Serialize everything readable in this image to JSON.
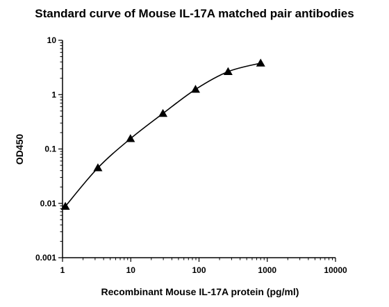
{
  "chart_data": {
    "type": "scatter",
    "title": "Standard curve of Mouse IL-17A matched pair antibodies",
    "xlabel": "Recombinant Mouse IL-17A protein (pg/ml)",
    "ylabel": "OD450",
    "xscale": "log",
    "yscale": "log",
    "xlim": [
      1,
      10000
    ],
    "ylim": [
      0.001,
      10
    ],
    "xticks": [
      "1",
      "10",
      "100",
      "1000",
      "10000"
    ],
    "yticks": [
      "0.001",
      "0.01",
      "0.1",
      "1",
      "10"
    ],
    "marker": "triangle",
    "fit_line": true,
    "grid": false,
    "series": [
      {
        "x": [
          1.1,
          3.3,
          9.9,
          29.6,
          88.9,
          266.7,
          800
        ],
        "y": [
          0.0088,
          0.045,
          0.155,
          0.45,
          1.25,
          2.65,
          3.8
        ]
      }
    ]
  }
}
